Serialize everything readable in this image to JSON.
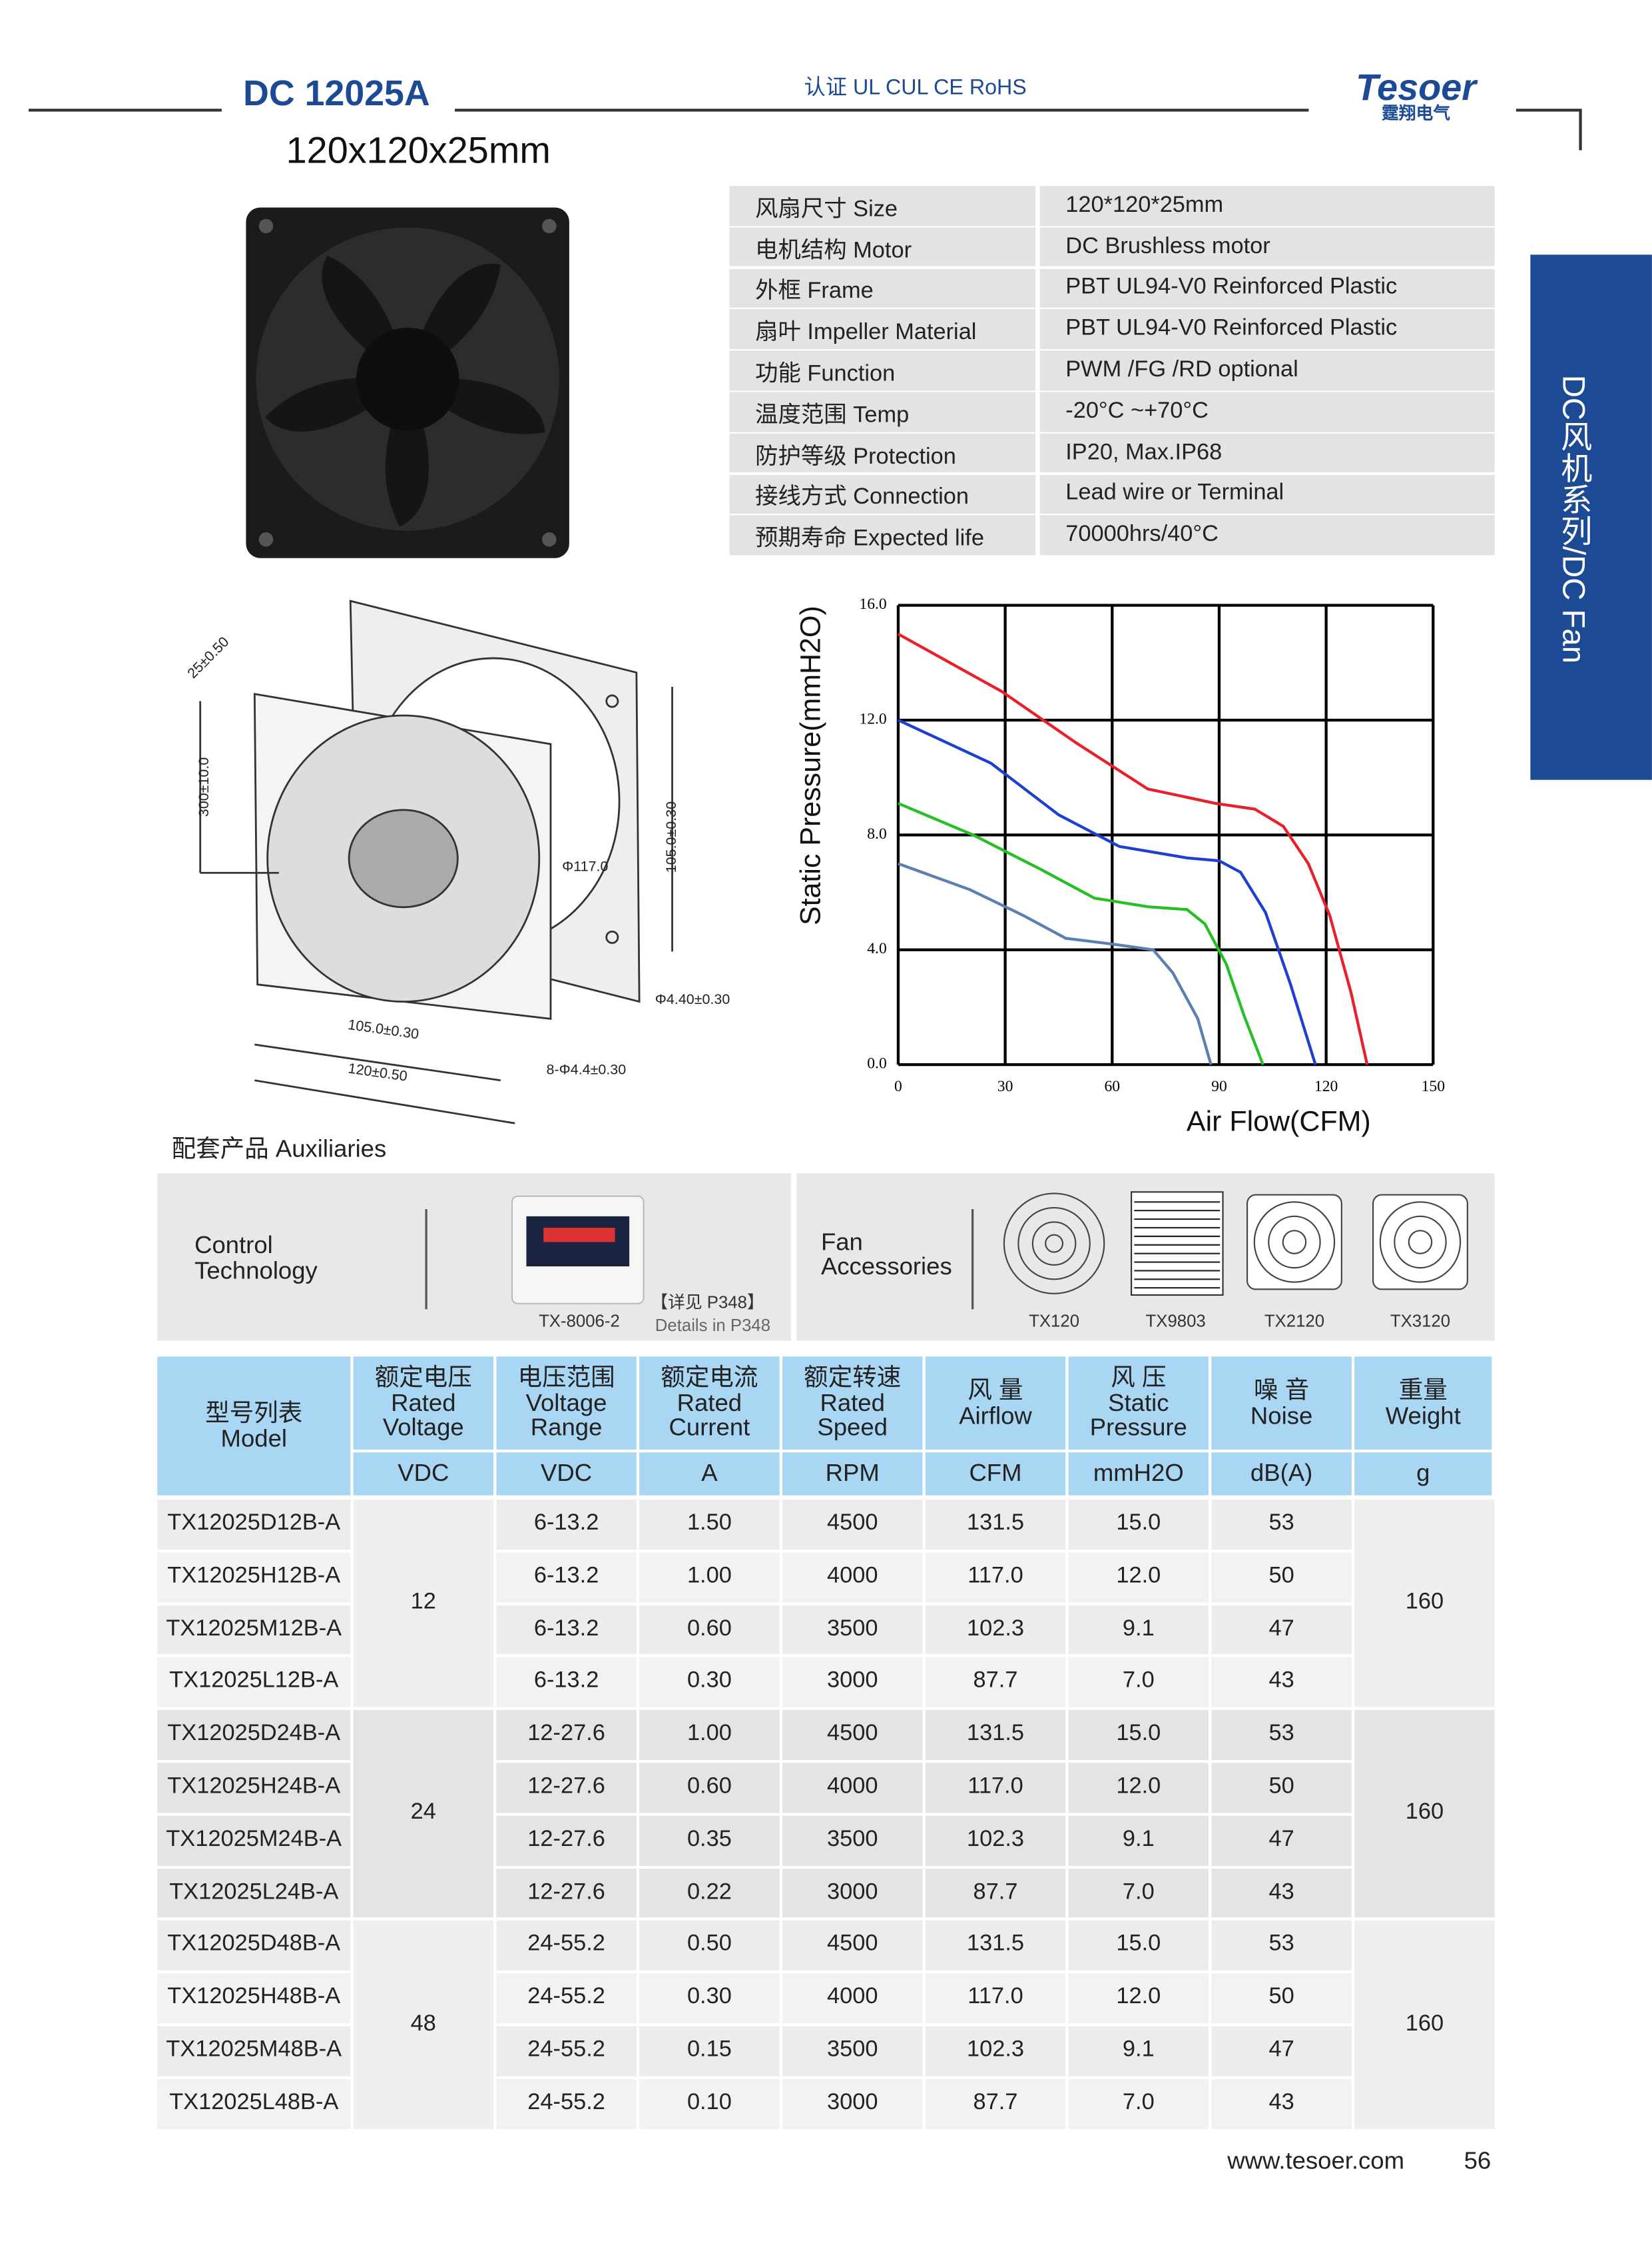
{
  "header": {
    "model": "DC 12025A",
    "certification": "认证 UL  CUL  CE  RoHS",
    "brand": "Tesoer",
    "brand_cn": "霆翔电气",
    "size": "120x120x25mm"
  },
  "side_tab": "DC风机系列/DC Fan",
  "specs": [
    [
      "风扇尺寸 Size",
      "120*120*25mm"
    ],
    [
      "电机结构 Motor",
      "DC Brushless motor"
    ],
    [
      "外框 Frame",
      "PBT UL94-V0 Reinforced Plastic"
    ],
    [
      "扇叶 Impeller Material",
      "PBT UL94-V0 Reinforced Plastic"
    ],
    [
      "功能 Function",
      "PWM /FG /RD optional"
    ],
    [
      "温度范围  Temp",
      "-20°C ~+70°C"
    ],
    [
      "防护等级  Protection",
      "IP20, Max.IP68"
    ],
    [
      "接线方式 Connection",
      "Lead wire or Terminal"
    ],
    [
      "预期寿命 Expected life",
      "70000hrs/40°C"
    ]
  ],
  "drawing_labels": [
    "25±0.50",
    "300±10.0",
    "Φ117.0",
    "105.0±0.30",
    "Φ4.40±0.30",
    "105.0±0.30",
    "120±0.50",
    "8-Φ4.4±0.30"
  ],
  "chart_data": {
    "type": "line",
    "x_label": "Air Flow(CFM)",
    "y_label": "Static Pressure(mmH2O)",
    "xlim": [
      0,
      150
    ],
    "xticks": [
      0,
      30,
      60,
      90,
      120,
      150
    ],
    "ylim": [
      0,
      16
    ],
    "yticks": [
      {
        "value": 0,
        "label": "0.0"
      },
      {
        "value": 4,
        "label": "4.0"
      },
      {
        "value": 8,
        "label": "8.0"
      },
      {
        "value": 12,
        "label": "12.0"
      },
      {
        "value": 16,
        "label": "16.0"
      }
    ],
    "grid": true,
    "series": [
      {
        "color": "#e8202a",
        "x": [
          0,
          29,
          50,
          70,
          89,
          100,
          108,
          115,
          121,
          127,
          131.5
        ],
        "y": [
          15.0,
          13.0,
          11.2,
          9.6,
          9.1,
          8.9,
          8.3,
          7.0,
          5.2,
          2.5,
          0
        ]
      },
      {
        "color": "#1e3fd0",
        "x": [
          0,
          26,
          45,
          62,
          81,
          90,
          96,
          103,
          110,
          117
        ],
        "y": [
          12.0,
          10.5,
          8.7,
          7.6,
          7.2,
          7.1,
          6.7,
          5.3,
          2.8,
          0
        ]
      },
      {
        "color": "#26c026",
        "x": [
          0,
          21,
          40,
          55,
          70,
          81,
          86,
          92,
          97,
          102.3
        ],
        "y": [
          9.1,
          8.0,
          6.8,
          5.8,
          5.5,
          5.4,
          4.9,
          3.5,
          1.7,
          0
        ]
      },
      {
        "color": "#5b7fb0",
        "x": [
          0,
          20,
          35,
          47,
          60,
          71.5,
          77,
          84,
          87.7
        ],
        "y": [
          7.0,
          6.1,
          5.2,
          4.4,
          4.2,
          4.0,
          3.2,
          1.6,
          0
        ]
      }
    ]
  },
  "auxiliaries": {
    "title": "配套产品 Auxiliaries",
    "control": {
      "label": [
        "Control",
        "Technology"
      ],
      "item": "TX-8006-2",
      "note_cn": "【详见 P348】",
      "note_en": "Details in P348"
    },
    "fan_accessories": {
      "label": [
        "Fan",
        "Accessories"
      ],
      "items": [
        "TX120",
        "TX9803",
        "TX2120",
        "TX3120"
      ]
    }
  },
  "models": {
    "headers": [
      [
        "型号列表",
        "Model"
      ],
      [
        "额定电压",
        "Rated",
        "Voltage"
      ],
      [
        "电压范围",
        "Voltage",
        "Range"
      ],
      [
        "额定电流",
        "Rated",
        "Current"
      ],
      [
        "额定转速",
        "Rated",
        "Speed"
      ],
      [
        "风 量",
        "Airflow"
      ],
      [
        "风 压",
        "Static",
        "Pressure"
      ],
      [
        "噪 音",
        "Noise"
      ],
      [
        "重量",
        "Weight"
      ]
    ],
    "units": [
      "VDC",
      "VDC",
      "A",
      "RPM",
      "CFM",
      "mmH2O",
      "dB(A)",
      "g"
    ],
    "groups": [
      {
        "voltage": "12",
        "weight": "160",
        "rows": [
          [
            "TX12025D12B-A",
            "6-13.2",
            "1.50",
            "4500",
            "131.5",
            "15.0",
            "53"
          ],
          [
            "TX12025H12B-A",
            "6-13.2",
            "1.00",
            "4000",
            "117.0",
            "12.0",
            "50"
          ],
          [
            "TX12025M12B-A",
            "6-13.2",
            "0.60",
            "3500",
            "102.3",
            "9.1",
            "47"
          ],
          [
            "TX12025L12B-A",
            "6-13.2",
            "0.30",
            "3000",
            "87.7",
            "7.0",
            "43"
          ]
        ]
      },
      {
        "voltage": "24",
        "weight": "160",
        "rows": [
          [
            "TX12025D24B-A",
            "12-27.6",
            "1.00",
            "4500",
            "131.5",
            "15.0",
            "53"
          ],
          [
            "TX12025H24B-A",
            "12-27.6",
            "0.60",
            "4000",
            "117.0",
            "12.0",
            "50"
          ],
          [
            "TX12025M24B-A",
            "12-27.6",
            "0.35",
            "3500",
            "102.3",
            "9.1",
            "47"
          ],
          [
            "TX12025L24B-A",
            "12-27.6",
            "0.22",
            "3000",
            "87.7",
            "7.0",
            "43"
          ]
        ]
      },
      {
        "voltage": "48",
        "weight": "160",
        "rows": [
          [
            "TX12025D48B-A",
            "24-55.2",
            "0.50",
            "4500",
            "131.5",
            "15.0",
            "53"
          ],
          [
            "TX12025H48B-A",
            "24-55.2",
            "0.30",
            "4000",
            "117.0",
            "12.0",
            "50"
          ],
          [
            "TX12025M48B-A",
            "24-55.2",
            "0.15",
            "3500",
            "102.3",
            "9.1",
            "47"
          ],
          [
            "TX12025L48B-A",
            "24-55.2",
            "0.10",
            "3000",
            "87.7",
            "7.0",
            "43"
          ]
        ]
      }
    ]
  },
  "footer": {
    "url": "www.tesoer.com",
    "page": "56"
  }
}
